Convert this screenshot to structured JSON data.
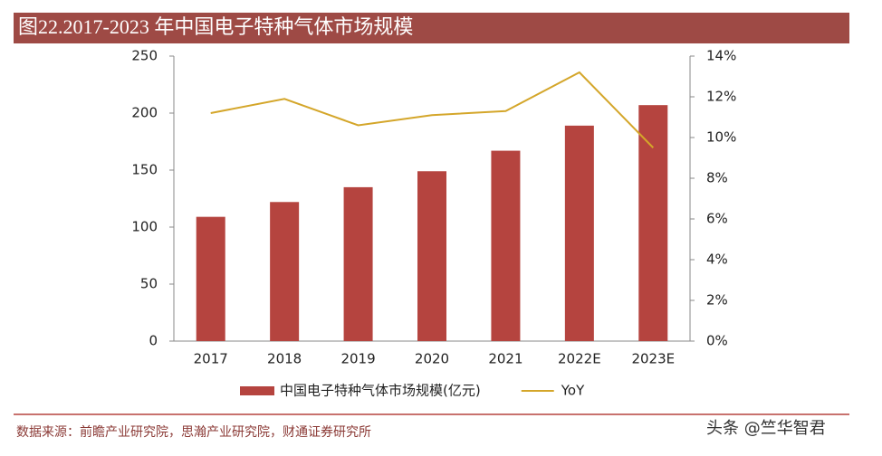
{
  "chart_data": {
    "type": "bar",
    "title": "图22.2017-2023 年中国电子特种气体市场规模",
    "categories": [
      "2017",
      "2018",
      "2019",
      "2020",
      "2021",
      "2022E",
      "2023E"
    ],
    "series": [
      {
        "name": "中国电子特种气体市场规模(亿元)",
        "type": "bar",
        "color": "#b5443f",
        "values": [
          109,
          122,
          135,
          149,
          167,
          189,
          207
        ]
      },
      {
        "name": "YoY",
        "type": "line",
        "axis": "y2",
        "color": "#d4a62a",
        "values": [
          11.2,
          11.9,
          10.6,
          11.1,
          11.3,
          13.2,
          9.5
        ]
      }
    ],
    "ylim": [
      0,
      250
    ],
    "yticks": [
      0,
      50,
      100,
      150,
      200,
      250
    ],
    "y2lim": [
      0,
      14
    ],
    "y2ticks": [
      {
        "value": 0,
        "label": "0%"
      },
      {
        "value": 2,
        "label": "2%"
      },
      {
        "value": 4,
        "label": "4%"
      },
      {
        "value": 6,
        "label": "6%"
      },
      {
        "value": 8,
        "label": "8%"
      },
      {
        "value": 10,
        "label": "10%"
      },
      {
        "value": 12,
        "label": "12%"
      },
      {
        "value": 14,
        "label": "14%"
      }
    ],
    "grid": false,
    "legend": "bottom"
  },
  "source": "数据来源：前瞻产业研究院，思瀚产业研究院，财通证券研究所",
  "watermark": "头条 @竺华智君"
}
